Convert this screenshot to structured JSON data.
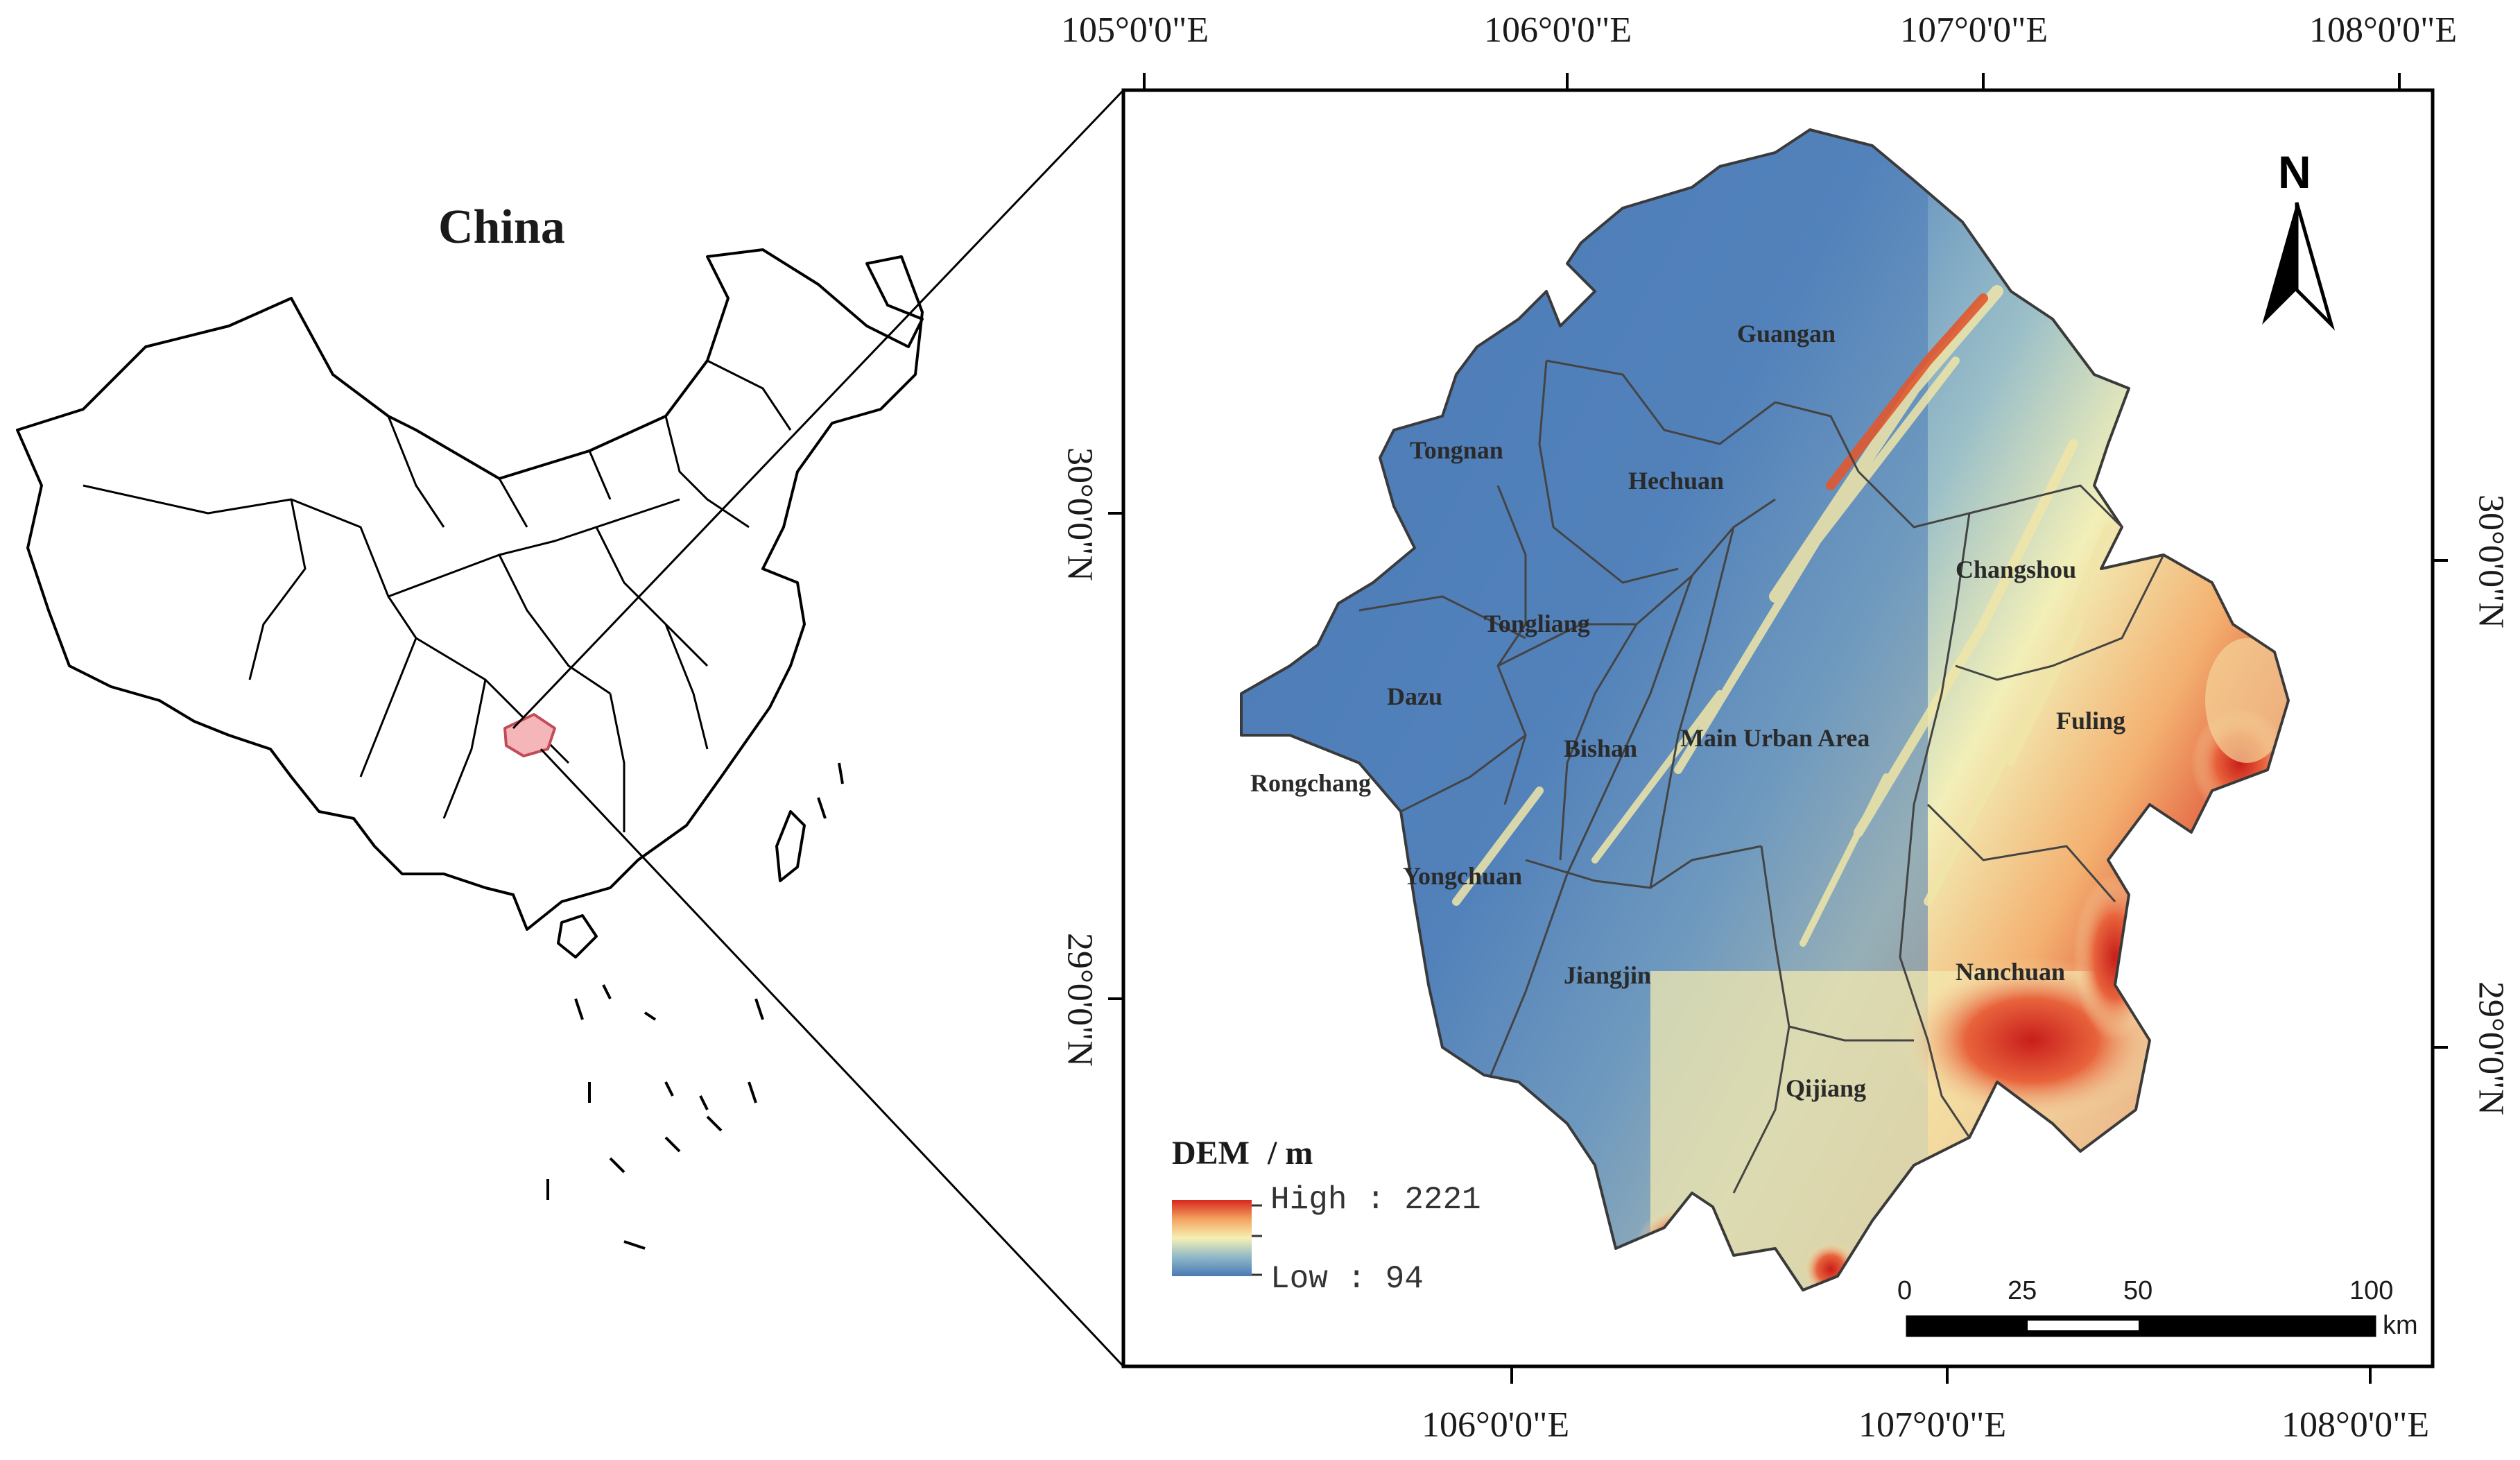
{
  "inset_title": "China",
  "top_longitudes": [
    "105°0'0\"E",
    "106°0'0\"E",
    "107°0'0\"E",
    "108°0'0\"E"
  ],
  "bottom_longitudes": [
    "106°0'0\"E",
    "107°0'0\"E",
    "108°0'0\"E"
  ],
  "left_latitudes": [
    "30°0'0\"N",
    "29°0'0\"N"
  ],
  "right_latitudes": [
    "30°0'0\"N",
    "29°0'0\"N"
  ],
  "north_arrow_label": "N",
  "counties": {
    "guangan": "Guangan",
    "tongnan": "Tongnan",
    "hechuan": "Hechuan",
    "changshou": "Changshou",
    "tongliang": "Tongliang",
    "dazu": "Dazu",
    "fuling": "Fuling",
    "bishan": "Bishan",
    "main_urban": "Main Urban Area",
    "rongchang": "Rongchang",
    "yongchuan": "Yongchuan",
    "jiangjin": "Jiangjin",
    "nanchuan": "Nanchuan",
    "qijiang": "Qijiang"
  },
  "legend": {
    "title": "DEM",
    "unit": "/ m",
    "high": "High : 2221",
    "low": "Low : 94",
    "high_value": 2221,
    "low_value": 94,
    "colors": [
      "#d7261e",
      "#f3a35f",
      "#f6f0b4",
      "#8fb8c8",
      "#4a79b5"
    ]
  },
  "scalebar": {
    "ticks": [
      "0",
      "25",
      "50",
      "100"
    ],
    "unit": "km"
  },
  "colors": {
    "dem_low": "#4a79b5",
    "dem_mid": "#f6f0b4",
    "dem_high": "#d7261e",
    "highlight_region": "#f4b6b9"
  }
}
